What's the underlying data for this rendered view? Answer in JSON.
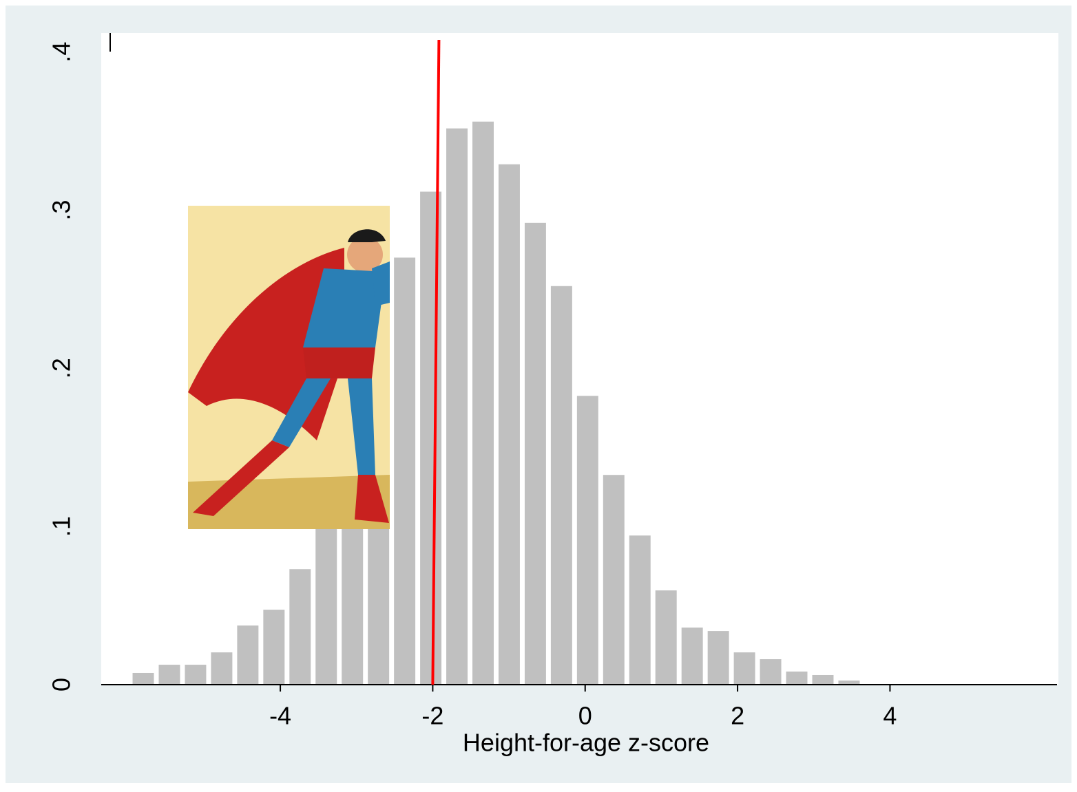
{
  "chart_data": {
    "type": "histogram",
    "xlabel": "Height-for-age z-score",
    "bins": [
      -5.97,
      -5.627,
      -5.284,
      -4.941,
      -4.598,
      -4.255,
      -3.912,
      -3.569,
      -3.226,
      -2.883,
      -2.54,
      -2.197,
      -1.854,
      -1.511,
      -1.168,
      -0.825,
      -0.482,
      -0.139,
      0.204,
      0.547,
      0.89,
      1.233,
      1.576,
      1.919,
      2.262,
      2.605,
      2.948,
      3.291,
      3.634
    ],
    "values": [
      0.0074,
      0.0126,
      0.0126,
      0.0204,
      0.0374,
      0.0474,
      0.073,
      0.11,
      0.15,
      0.2,
      0.27,
      0.3117,
      0.3517,
      0.356,
      0.329,
      0.292,
      0.252,
      0.1826,
      0.1326,
      0.0943,
      0.0596,
      0.0361,
      0.0339,
      0.0204,
      0.0161,
      0.0083,
      0.0061,
      0.0026
    ],
    "color": "#c0c0c0",
    "xlim": [
      -6.35,
      6.21
    ],
    "ylim": [
      0,
      0.412
    ],
    "xticks": [
      -4,
      -2,
      0,
      2,
      4
    ],
    "yticks": [
      0,
      {
        "value": 0.1,
        "label": ".1"
      },
      {
        "value": 0.2,
        "label": ".2"
      },
      {
        "value": 0.3,
        "label": ".3"
      },
      {
        "value": 0.4,
        "label": ".4"
      }
    ],
    "reference_line": {
      "x": -2,
      "color": "#ff0000"
    }
  }
}
